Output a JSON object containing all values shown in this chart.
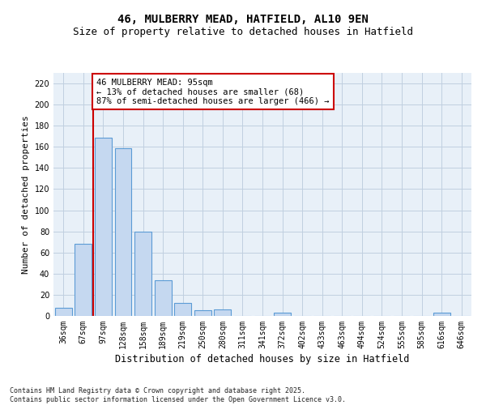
{
  "title1": "46, MULBERRY MEAD, HATFIELD, AL10 9EN",
  "title2": "Size of property relative to detached houses in Hatfield",
  "xlabel": "Distribution of detached houses by size in Hatfield",
  "ylabel": "Number of detached properties",
  "categories": [
    "36sqm",
    "67sqm",
    "97sqm",
    "128sqm",
    "158sqm",
    "189sqm",
    "219sqm",
    "250sqm",
    "280sqm",
    "311sqm",
    "341sqm",
    "372sqm",
    "402sqm",
    "433sqm",
    "463sqm",
    "494sqm",
    "524sqm",
    "555sqm",
    "585sqm",
    "616sqm",
    "646sqm"
  ],
  "values": [
    8,
    68,
    169,
    159,
    80,
    34,
    12,
    5,
    6,
    0,
    0,
    3,
    0,
    0,
    0,
    0,
    0,
    0,
    0,
    3,
    0
  ],
  "bar_color": "#c5d8f0",
  "bar_edge_color": "#5b9bd5",
  "vline_x": 1.5,
  "vline_color": "#cc0000",
  "annotation_text": "46 MULBERRY MEAD: 95sqm\n← 13% of detached houses are smaller (68)\n87% of semi-detached houses are larger (466) →",
  "annotation_box_color": "#ffffff",
  "annotation_box_edge": "#cc0000",
  "ylim": [
    0,
    230
  ],
  "yticks": [
    0,
    20,
    40,
    60,
    80,
    100,
    120,
    140,
    160,
    180,
    200,
    220
  ],
  "grid_color": "#c0cfe0",
  "background_color": "#e8f0f8",
  "footer_text": "Contains HM Land Registry data © Crown copyright and database right 2025.\nContains public sector information licensed under the Open Government Licence v3.0.",
  "title_fontsize": 10,
  "subtitle_fontsize": 9,
  "tick_fontsize": 7,
  "ylabel_fontsize": 8,
  "xlabel_fontsize": 8.5,
  "ann_fontsize": 7.5
}
